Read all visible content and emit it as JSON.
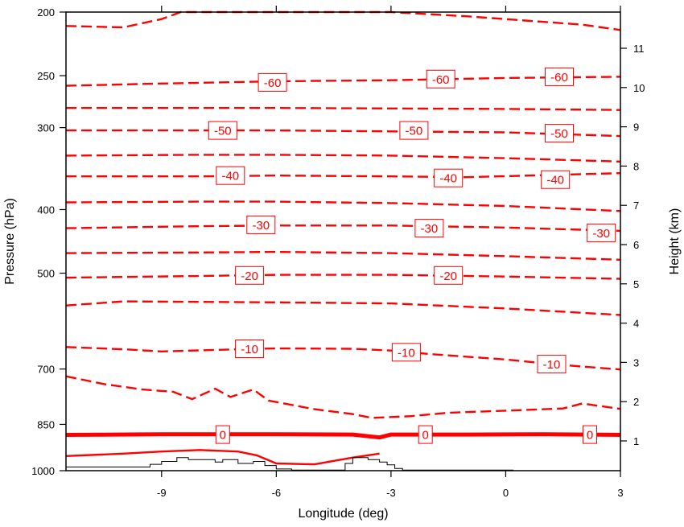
{
  "chart_data": {
    "type": "contour",
    "xlabel": "Longitude (deg)",
    "ylabel": "Pressure (hPa)",
    "y2label": "Height (km)",
    "xlim": [
      -11.5,
      3
    ],
    "ylim": [
      1000,
      200
    ],
    "yscale": "log",
    "xticks": [
      {
        "value": -9,
        "label": "-9"
      },
      {
        "value": -6,
        "label": "-6"
      },
      {
        "value": -3,
        "label": "-3"
      },
      {
        "value": 0,
        "label": "0"
      },
      {
        "value": 3,
        "label": "3"
      }
    ],
    "yticks": [
      {
        "value": 200,
        "label": "200"
      },
      {
        "value": 250,
        "label": "250"
      },
      {
        "value": 300,
        "label": "300"
      },
      {
        "value": 400,
        "label": "400"
      },
      {
        "value": 500,
        "label": "500"
      },
      {
        "value": 700,
        "label": "700"
      },
      {
        "value": 850,
        "label": "850"
      },
      {
        "value": 1000,
        "label": "1000"
      }
    ],
    "y2ticks": [
      {
        "value": 1,
        "label": "1"
      },
      {
        "value": 2,
        "label": "2"
      },
      {
        "value": 3,
        "label": "3"
      },
      {
        "value": 4,
        "label": "4"
      },
      {
        "value": 5,
        "label": "5"
      },
      {
        "value": 6,
        "label": "6"
      },
      {
        "value": 7,
        "label": "7"
      },
      {
        "value": 8,
        "label": "8"
      },
      {
        "value": 9,
        "label": "9"
      },
      {
        "value": 10,
        "label": "10"
      },
      {
        "value": 11,
        "label": "11"
      }
    ],
    "contour_color": "#ff0000",
    "terrain_color": "#000000",
    "contours": [
      {
        "level": -65,
        "style": "dashed",
        "x": [
          -11.5,
          -10,
          -9,
          -8.5,
          -6,
          -3,
          -1,
          1,
          2,
          3
        ],
        "p": [
          210,
          211,
          205,
          200,
          200,
          200,
          203,
          207,
          209,
          213
        ]
      },
      {
        "level": -60,
        "style": "dashed",
        "x": [
          -11.5,
          -9,
          -6,
          -3,
          0,
          3
        ],
        "p": [
          259,
          257,
          255,
          254,
          252,
          251
        ]
      },
      {
        "level": -55,
        "style": "dashed",
        "x": [
          -11.5,
          -6,
          0,
          3
        ],
        "p": [
          280,
          280,
          281,
          282
        ]
      },
      {
        "level": -50,
        "style": "dashed",
        "x": [
          -11.5,
          -9,
          -6,
          -3,
          0,
          3
        ],
        "p": [
          303,
          303,
          303,
          304,
          305,
          309
        ]
      },
      {
        "level": -45,
        "style": "dashed",
        "x": [
          -11.5,
          -8,
          -6,
          -3,
          0,
          3
        ],
        "p": [
          331,
          330,
          330,
          331,
          334,
          338
        ]
      },
      {
        "level": -40,
        "style": "dashed",
        "x": [
          -11.5,
          -8,
          -6,
          -3,
          -1,
          3
        ],
        "p": [
          356,
          356,
          355,
          356,
          357,
          352
        ]
      },
      {
        "level": -35,
        "style": "dashed",
        "x": [
          -11.5,
          -8,
          -6,
          -3,
          0,
          3
        ],
        "p": [
          390,
          389,
          389,
          391,
          395,
          402
        ]
      },
      {
        "level": -30,
        "style": "dashed",
        "x": [
          -11.5,
          -8,
          -6,
          -3,
          0,
          3
        ],
        "p": [
          427,
          424,
          423,
          423,
          426,
          431
        ]
      },
      {
        "level": -25,
        "style": "dashed",
        "x": [
          -11.5,
          -8,
          -6,
          -3,
          0,
          3
        ],
        "p": [
          466,
          465,
          464,
          466,
          471,
          477
        ]
      },
      {
        "level": -20,
        "style": "dashed",
        "x": [
          -11.5,
          -8,
          -6,
          -3,
          0,
          3
        ],
        "p": [
          508,
          505,
          503,
          503,
          506,
          510
        ]
      },
      {
        "level": -15,
        "style": "dashed",
        "x": [
          -11.5,
          -10,
          -8,
          -6,
          -3,
          0,
          3
        ],
        "p": [
          560,
          552,
          553,
          554,
          556,
          566,
          579
        ]
      },
      {
        "level": -10,
        "style": "dashed",
        "x": [
          -11.5,
          -10,
          -9,
          -7,
          -6,
          -4,
          -3,
          -2,
          0,
          1,
          2,
          3
        ],
        "p": [
          648,
          653,
          658,
          653,
          651,
          652,
          656,
          664,
          677,
          686,
          694,
          701
        ]
      },
      {
        "level": -5,
        "style": "dashed",
        "x": [
          -11.5,
          -10.5,
          -9.5,
          -8.7,
          -8.2,
          -7.6,
          -7.2,
          -6.6,
          -6.2,
          -5,
          -4,
          -3.5,
          -2.5,
          -1.5,
          0,
          1.5,
          2,
          3
        ],
        "p": [
          718,
          738,
          752,
          758,
          778,
          750,
          772,
          752,
          782,
          806,
          820,
          831,
          826,
          816,
          810,
          804,
          790,
          805
        ]
      },
      {
        "level": 0,
        "style": "thick",
        "x": [
          -11.5,
          -9,
          -6,
          -4,
          -3.3,
          -3,
          -1,
          1,
          3
        ],
        "p": [
          882,
          880,
          880,
          881,
          890,
          881,
          881,
          880,
          882
        ]
      },
      {
        "level": 5,
        "style": "solid",
        "x": [
          -11.5,
          -10,
          -9,
          -8,
          -7,
          -6.5,
          -6,
          -5,
          -4,
          -3.3
        ],
        "p": [
          950,
          942,
          935,
          930,
          935,
          948,
          975,
          978,
          955,
          942
        ]
      }
    ],
    "contour_labels": [
      {
        "text": "-60",
        "x": -6.1,
        "p": 256
      },
      {
        "text": "-60",
        "x": -1.7,
        "p": 253
      },
      {
        "text": "-60",
        "x": 1.4,
        "p": 251
      },
      {
        "text": "-50",
        "x": -7.4,
        "p": 303
      },
      {
        "text": "-50",
        "x": -2.4,
        "p": 303
      },
      {
        "text": "-50",
        "x": 1.4,
        "p": 306
      },
      {
        "text": "-40",
        "x": -7.2,
        "p": 355
      },
      {
        "text": "-40",
        "x": -1.5,
        "p": 358
      },
      {
        "text": "-40",
        "x": 1.3,
        "p": 360
      },
      {
        "text": "-30",
        "x": -6.4,
        "p": 422
      },
      {
        "text": "-30",
        "x": -2.0,
        "p": 427
      },
      {
        "text": "-30",
        "x": 2.5,
        "p": 434
      },
      {
        "text": "-20",
        "x": -6.7,
        "p": 504
      },
      {
        "text": "-20",
        "x": -1.5,
        "p": 504
      },
      {
        "text": "-10",
        "x": -6.7,
        "p": 652
      },
      {
        "text": "-10",
        "x": -2.6,
        "p": 660
      },
      {
        "text": "-10",
        "x": 1.2,
        "p": 688
      },
      {
        "text": "0",
        "x": -7.4,
        "p": 881
      },
      {
        "text": "0",
        "x": -2.1,
        "p": 881
      },
      {
        "text": "0",
        "x": 2.2,
        "p": 881
      }
    ],
    "terrain": {
      "x": [
        -11.5,
        -9.3,
        -9.3,
        -9.0,
        -9.0,
        -8.6,
        -8.6,
        -8.3,
        -8.3,
        -7.6,
        -7.6,
        -7.4,
        -7.4,
        -7.0,
        -7.0,
        -6.6,
        -6.6,
        -6.3,
        -6.3,
        -6.0,
        -6.0,
        -5.6,
        -5.6,
        -4.2,
        -4.2,
        -4.0,
        -4.0,
        -3.6,
        -3.6,
        -3.3,
        -3.3,
        -3.1,
        -3.1,
        -2.9,
        -2.9,
        -2.7,
        -2.7,
        0.2
      ],
      "p": [
        987,
        987,
        978,
        978,
        968,
        968,
        955,
        955,
        962,
        962,
        970,
        970,
        962,
        962,
        975,
        975,
        968,
        968,
        982,
        982,
        994,
        994,
        998,
        998,
        975,
        975,
        955,
        955,
        962,
        962,
        970,
        970,
        980,
        980,
        992,
        992,
        998,
        998
      ]
    }
  }
}
